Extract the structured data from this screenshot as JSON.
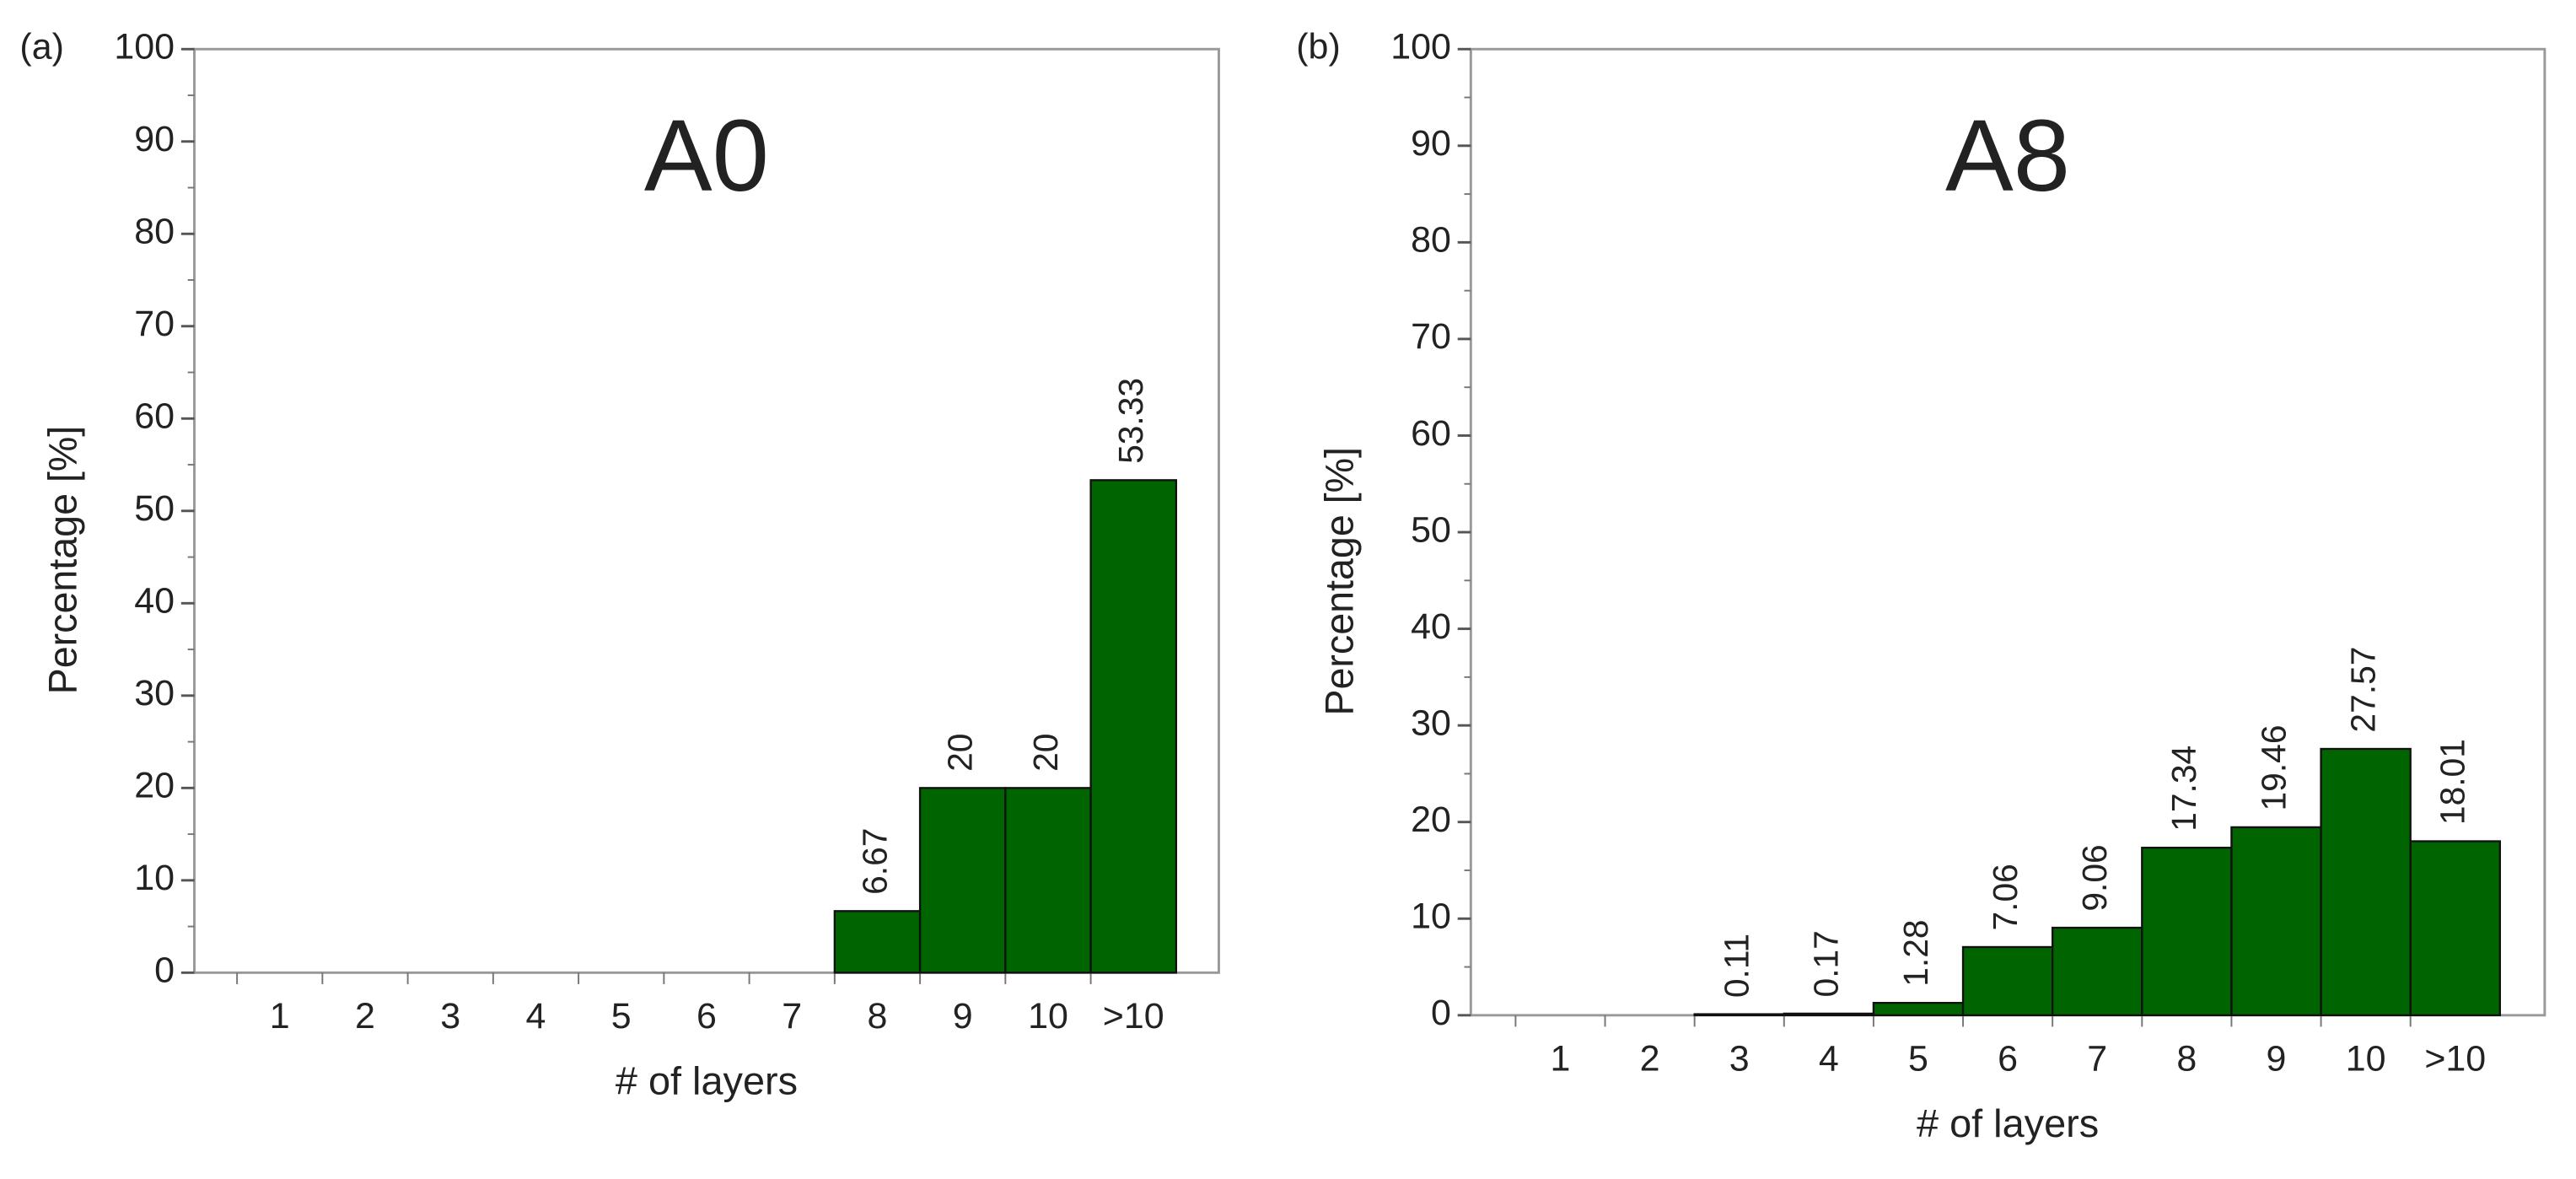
{
  "chart_data": [
    {
      "type": "bar",
      "panel_label": "(a)",
      "title": "A0",
      "xlabel": "# of layers",
      "ylabel": "Percentage [%]",
      "categories": [
        "1",
        "2",
        "3",
        "4",
        "5",
        "6",
        "7",
        "8",
        "9",
        "10",
        ">10"
      ],
      "values": [
        null,
        null,
        null,
        null,
        null,
        null,
        null,
        6.67,
        20,
        20,
        53.33
      ],
      "color": "#006400",
      "ylim": [
        0,
        100
      ],
      "yticks": [
        0,
        10,
        20,
        30,
        40,
        50,
        60,
        70,
        80,
        90,
        100
      ]
    },
    {
      "type": "bar",
      "panel_label": "(b)",
      "title": "A8",
      "xlabel": "# of layers",
      "ylabel": "Percentage [%]",
      "categories": [
        "1",
        "2",
        "3",
        "4",
        "5",
        "6",
        "7",
        "8",
        "9",
        "10",
        ">10"
      ],
      "values": [
        null,
        null,
        0.11,
        0.17,
        1.28,
        7.06,
        9.06,
        17.34,
        19.46,
        27.57,
        18.01
      ],
      "color": "#006400",
      "ylim": [
        0,
        100
      ],
      "yticks": [
        0,
        10,
        20,
        30,
        40,
        50,
        60,
        70,
        80,
        90,
        100
      ]
    }
  ]
}
